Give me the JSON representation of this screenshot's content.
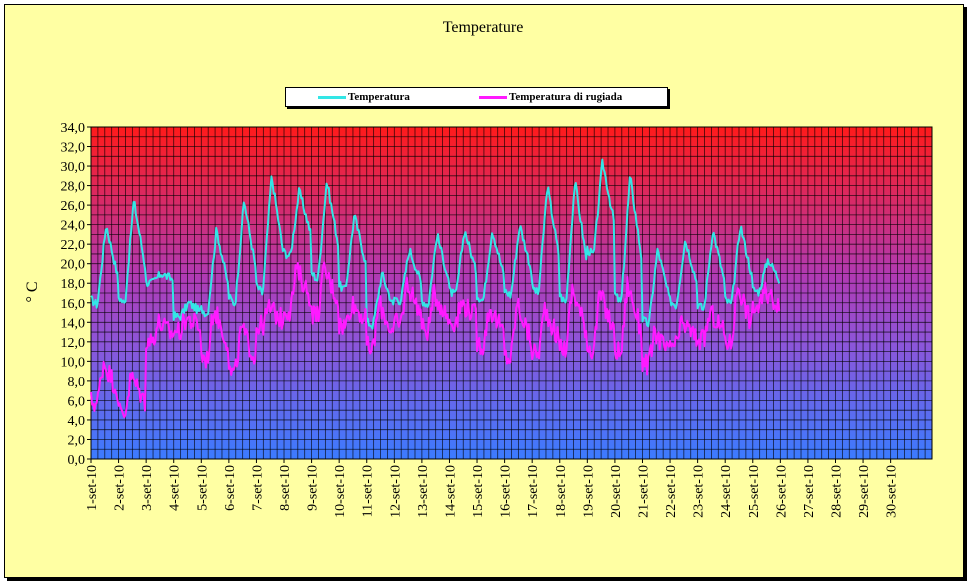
{
  "chart_data": {
    "type": "line",
    "title": "Temperature",
    "ylabel": "° C",
    "xlabel": "",
    "ylim": [
      0,
      34
    ],
    "ystep": 2,
    "legend_position": "top-center",
    "grid": true,
    "background_gradient": [
      "#ff1a1a",
      "#b03ab4",
      "#8d55d9",
      "#3b7bff"
    ],
    "y_tick_labels": [
      "0,0",
      "2,0",
      "4,0",
      "6,0",
      "8,0",
      "10,0",
      "12,0",
      "14,0",
      "16,0",
      "18,0",
      "20,0",
      "22,0",
      "24,0",
      "26,0",
      "28,0",
      "30,0",
      "32,0",
      "34,0"
    ],
    "categories": [
      "1-set-10",
      "2-set-10",
      "3-set-10",
      "4-set-10",
      "5-set-10",
      "6-set-10",
      "7-set-10",
      "8-set-10",
      "9-set-10",
      "10-set-10",
      "11-set-10",
      "12-set-10",
      "13-set-10",
      "14-set-10",
      "15-set-10",
      "16-set-10",
      "17-set-10",
      "18-set-10",
      "19-set-10",
      "20-set-10",
      "21-set-10",
      "22-set-10",
      "23-set-10",
      "24-set-10",
      "25-set-10",
      "26-set-10",
      "27-set-10",
      "28-set-10",
      "29-set-10",
      "30-set-10"
    ],
    "series": [
      {
        "name": "Temperatura",
        "color": "#33e6e6",
        "daily_min": [
          15.5,
          15.5,
          18.0,
          14.5,
          14.5,
          15.5,
          16.5,
          20.5,
          18.0,
          17.0,
          13.5,
          16.0,
          15.5,
          16.5,
          16.0,
          16.5,
          16.5,
          15.5,
          20.5,
          15.5,
          13.5,
          15.5,
          15.0,
          15.5,
          17.0
        ],
        "daily_max": [
          24.0,
          26.5,
          19.0,
          16.0,
          23.5,
          26.5,
          29.0,
          27.5,
          28.5,
          25.0,
          19.0,
          21.5,
          23.0,
          23.5,
          23.5,
          24.0,
          28.0,
          28.5,
          30.5,
          29.0,
          21.5,
          22.5,
          23.5,
          24.0,
          20.5
        ],
        "peak_hour_fraction": 0.55
      },
      {
        "name": "Temperatura di rugiada",
        "color": "#ff1aff",
        "daily_min": [
          5.5,
          4.5,
          12.0,
          13.0,
          10.0,
          8.5,
          13.5,
          15.0,
          14.5,
          13.5,
          11.0,
          13.5,
          13.0,
          14.0,
          11.5,
          10.0,
          10.5,
          11.0,
          11.0,
          10.5,
          9.5,
          11.5,
          12.0,
          11.5,
          15.5
        ],
        "daily_max": [
          10.0,
          8.5,
          14.0,
          14.5,
          15.5,
          13.5,
          15.5,
          19.5,
          19.5,
          16.0,
          16.0,
          18.0,
          17.0,
          16.0,
          15.5,
          16.0,
          15.5,
          17.5,
          17.0,
          18.0,
          13.0,
          14.0,
          15.0,
          18.0,
          17.0
        ],
        "peak_hour_fraction": 0.45
      }
    ]
  }
}
